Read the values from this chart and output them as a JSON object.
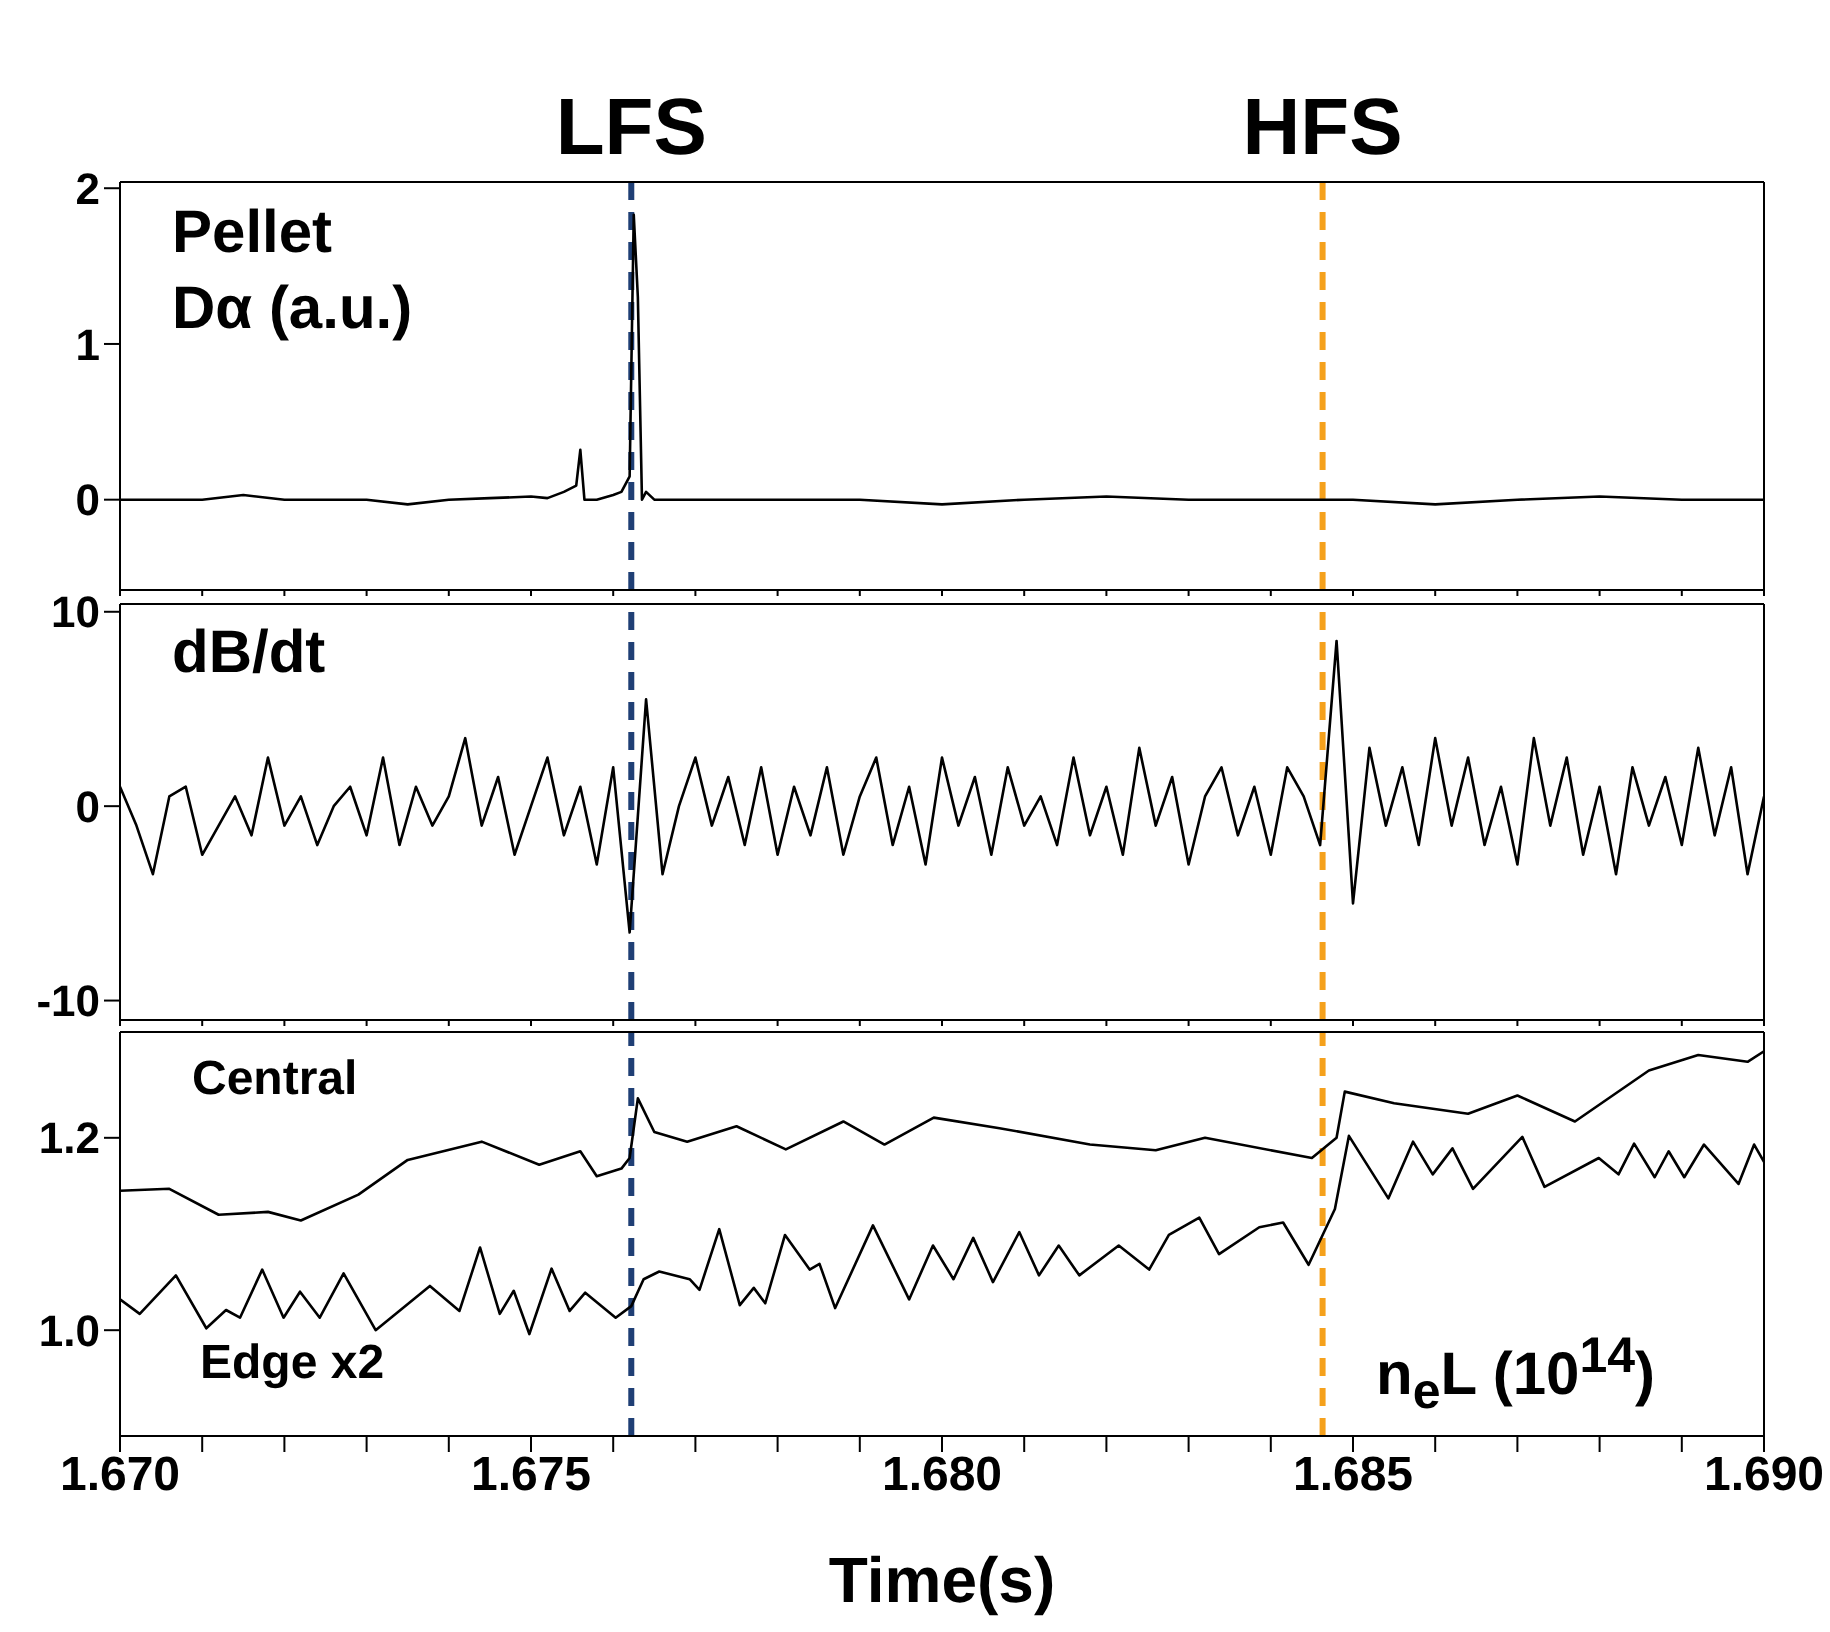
{
  "chart_data": [
    {
      "type": "line",
      "ylabel": "Pellet\nDα (a.u.)",
      "tick_labels": "y",
      "xlim": [
        1.67,
        1.69
      ],
      "xticks": [
        {
          "value": 1.67,
          "label": null
        },
        {
          "value": 1.671,
          "label": null
        },
        {
          "value": 1.672,
          "label": null
        },
        {
          "value": 1.673,
          "label": null
        },
        {
          "value": 1.674,
          "label": null
        },
        {
          "value": 1.675,
          "label": null
        },
        {
          "value": 1.676,
          "label": null
        },
        {
          "value": 1.677,
          "label": null
        },
        {
          "value": 1.678,
          "label": null
        },
        {
          "value": 1.679,
          "label": null
        },
        {
          "value": 1.68,
          "label": null
        },
        {
          "value": 1.681,
          "label": null
        },
        {
          "value": 1.682,
          "label": null
        },
        {
          "value": 1.683,
          "label": null
        },
        {
          "value": 1.684,
          "label": null
        },
        {
          "value": 1.685,
          "label": null
        },
        {
          "value": 1.686,
          "label": null
        },
        {
          "value": 1.687,
          "label": null
        },
        {
          "value": 1.688,
          "label": null
        },
        {
          "value": 1.689,
          "label": null
        },
        {
          "value": 1.69,
          "label": null
        }
      ],
      "ylim": [
        -0.58,
        2.04
      ],
      "yticks": [
        0,
        1,
        2
      ],
      "ref_lines": [
        {
          "axis": "x",
          "value": 1.67622,
          "label": "LFS",
          "color": "#1f3f75",
          "line_style": "dashed"
        },
        {
          "axis": "x",
          "value": 1.68463,
          "label": "HFS",
          "color": "#f5a11c",
          "line_style": "dashed"
        }
      ],
      "series": [
        {
          "color": "#000000",
          "x": [
            1.67,
            1.671,
            1.6715,
            1.672,
            1.673,
            1.6735,
            1.674,
            1.6745,
            1.675,
            1.6752,
            1.6754,
            1.67555,
            1.6756,
            1.67565,
            1.6758,
            1.676,
            1.6761,
            1.6762,
            1.67625,
            1.6763,
            1.67635,
            1.6764,
            1.6765,
            1.678,
            1.679,
            1.68,
            1.681,
            1.682,
            1.683,
            1.684,
            1.685,
            1.686,
            1.687,
            1.688,
            1.689,
            1.69
          ],
          "values": [
            0,
            0,
            0.03,
            0,
            0,
            -0.03,
            0,
            0.01,
            0.02,
            0.01,
            0.05,
            0.09,
            0.32,
            0,
            0,
            0.03,
            0.05,
            0.15,
            1.83,
            1.3,
            0,
            0.05,
            0,
            0,
            0,
            -0.03,
            0,
            0.02,
            0,
            0,
            0,
            -0.03,
            0,
            0.02,
            0,
            0
          ]
        }
      ]
    },
    {
      "type": "line",
      "ylabel": "dB/dt",
      "tick_labels": "y",
      "xlim": [
        1.67,
        1.69
      ],
      "xticks": [
        {
          "value": 1.67,
          "label": null
        },
        {
          "value": 1.671,
          "label": null
        },
        {
          "value": 1.672,
          "label": null
        },
        {
          "value": 1.673,
          "label": null
        },
        {
          "value": 1.674,
          "label": null
        },
        {
          "value": 1.675,
          "label": null
        },
        {
          "value": 1.676,
          "label": null
        },
        {
          "value": 1.677,
          "label": null
        },
        {
          "value": 1.678,
          "label": null
        },
        {
          "value": 1.679,
          "label": null
        },
        {
          "value": 1.68,
          "label": null
        },
        {
          "value": 1.681,
          "label": null
        },
        {
          "value": 1.682,
          "label": null
        },
        {
          "value": 1.683,
          "label": null
        },
        {
          "value": 1.684,
          "label": null
        },
        {
          "value": 1.685,
          "label": null
        },
        {
          "value": 1.686,
          "label": null
        },
        {
          "value": 1.687,
          "label": null
        },
        {
          "value": 1.688,
          "label": null
        },
        {
          "value": 1.689,
          "label": null
        },
        {
          "value": 1.69,
          "label": null
        }
      ],
      "ylim": [
        -11,
        10.4
      ],
      "yticks": [
        -10,
        0,
        10
      ],
      "ref_lines": [
        {
          "axis": "x",
          "value": 1.67622,
          "label": null,
          "color": "#1f3f75",
          "line_style": "dashed"
        },
        {
          "axis": "x",
          "value": 1.68463,
          "label": null,
          "color": "#f5a11c",
          "line_style": "dashed"
        }
      ],
      "series": [
        {
          "color": "#000000",
          "x": [
            1.67,
            1.6702,
            1.6704,
            1.6706,
            1.6708,
            1.671,
            1.6712,
            1.6714,
            1.6716,
            1.6718,
            1.672,
            1.6722,
            1.6724,
            1.6726,
            1.6728,
            1.673,
            1.6732,
            1.6734,
            1.6736,
            1.6738,
            1.674,
            1.6742,
            1.6744,
            1.6746,
            1.6748,
            1.675,
            1.6752,
            1.6754,
            1.6756,
            1.6758,
            1.676,
            1.6762,
            1.6764,
            1.6766,
            1.6768,
            1.677,
            1.6772,
            1.6774,
            1.6776,
            1.6778,
            1.678,
            1.6782,
            1.6784,
            1.6786,
            1.6788,
            1.679,
            1.6792,
            1.6794,
            1.6796,
            1.6798,
            1.68,
            1.6802,
            1.6804,
            1.6806,
            1.6808,
            1.681,
            1.6812,
            1.6814,
            1.6816,
            1.6818,
            1.682,
            1.6822,
            1.6824,
            1.6826,
            1.6828,
            1.683,
            1.6832,
            1.6834,
            1.6836,
            1.6838,
            1.684,
            1.6842,
            1.6844,
            1.6846,
            1.6848,
            1.685,
            1.6852,
            1.6854,
            1.6856,
            1.6858,
            1.686,
            1.6862,
            1.6864,
            1.6866,
            1.6868,
            1.687,
            1.6872,
            1.6874,
            1.6876,
            1.6878,
            1.688,
            1.6882,
            1.6884,
            1.6886,
            1.6888,
            1.689,
            1.6892,
            1.6894,
            1.6896,
            1.6898,
            1.69
          ],
          "values": [
            1,
            -1,
            -3.5,
            0.5,
            1,
            -2.5,
            -1,
            0.5,
            -1.5,
            2.5,
            -1,
            0.5,
            -2,
            0,
            1,
            -1.5,
            2.5,
            -2,
            1,
            -1,
            0.5,
            3.5,
            -1,
            1.5,
            -2.5,
            0,
            2.5,
            -1.5,
            1,
            -3,
            2,
            -6.5,
            5.5,
            -3.5,
            0,
            2.5,
            -1,
            1.5,
            -2,
            2,
            -2.5,
            1,
            -1.5,
            2,
            -2.5,
            0.5,
            2.5,
            -2,
            1,
            -3,
            2.5,
            -1,
            1.5,
            -2.5,
            2,
            -1,
            0.5,
            -2,
            2.5,
            -1.5,
            1,
            -2.5,
            3,
            -1,
            1.5,
            -3,
            0.5,
            2,
            -1.5,
            1,
            -2.5,
            2,
            0.5,
            -2,
            8.5,
            -5,
            3,
            -1,
            2,
            -2,
            3.5,
            -1,
            2.5,
            -2,
            1,
            -3,
            3.5,
            -1,
            2.5,
            -2.5,
            1,
            -3.5,
            2,
            -1,
            1.5,
            -2,
            3,
            -1.5,
            2,
            -3.5,
            0.5
          ]
        }
      ]
    },
    {
      "type": "line",
      "ylabel": "n$_{e}$L (10$^{14}$)",
      "xlabel": "Time(s)",
      "xlim": [
        1.67,
        1.69
      ],
      "xticks": [
        {
          "value": 1.67,
          "label": "1.670"
        },
        {
          "value": 1.671,
          "label": null
        },
        {
          "value": 1.672,
          "label": null
        },
        {
          "value": 1.673,
          "label": null
        },
        {
          "value": 1.674,
          "label": null
        },
        {
          "value": 1.675,
          "label": "1.675"
        },
        {
          "value": 1.676,
          "label": null
        },
        {
          "value": 1.677,
          "label": null
        },
        {
          "value": 1.678,
          "label": null
        },
        {
          "value": 1.679,
          "label": null
        },
        {
          "value": 1.68,
          "label": "1.680"
        },
        {
          "value": 1.681,
          "label": null
        },
        {
          "value": 1.682,
          "label": null
        },
        {
          "value": 1.683,
          "label": null
        },
        {
          "value": 1.684,
          "label": null
        },
        {
          "value": 1.685,
          "label": "1.685"
        },
        {
          "value": 1.686,
          "label": null
        },
        {
          "value": 1.687,
          "label": null
        },
        {
          "value": 1.688,
          "label": null
        },
        {
          "value": 1.689,
          "label": null
        },
        {
          "value": 1.69,
          "label": "1.690"
        }
      ],
      "ylim": [
        0.89,
        1.31
      ],
      "yticks": [
        {
          "value": 1,
          "label": "1.0"
        },
        {
          "value": 1.2,
          "label": "1.2"
        }
      ],
      "ref_lines": [
        {
          "axis": "x",
          "value": 1.67622,
          "label": null,
          "color": "#1f3f75",
          "line_style": "dashed"
        },
        {
          "axis": "x",
          "value": 1.68463,
          "label": null,
          "color": "#f5a11c",
          "line_style": "dashed"
        }
      ],
      "series": [
        {
          "name": "Central",
          "color": "#000000",
          "x": [
            1.67,
            1.6706,
            1.6712,
            1.6718,
            1.6722,
            1.6729,
            1.6735,
            1.6744,
            1.6751,
            1.6756,
            1.6758,
            1.6761,
            1.6762,
            1.6763,
            1.6765,
            1.6769,
            1.6775,
            1.6781,
            1.6788,
            1.6793,
            1.6799,
            1.6807,
            1.6818,
            1.6826,
            1.6832,
            1.6845,
            1.6848,
            1.6849,
            1.6855,
            1.6864,
            1.687,
            1.6877,
            1.6886,
            1.6892,
            1.6898,
            1.69
          ],
          "values": [
            1.145,
            1.147,
            1.12,
            1.123,
            1.114,
            1.141,
            1.177,
            1.196,
            1.172,
            1.186,
            1.16,
            1.168,
            1.179,
            1.241,
            1.206,
            1.196,
            1.212,
            1.188,
            1.217,
            1.193,
            1.221,
            1.21,
            1.193,
            1.187,
            1.2,
            1.179,
            1.2,
            1.248,
            1.236,
            1.225,
            1.244,
            1.217,
            1.27,
            1.286,
            1.279,
            1.29
          ]
        },
        {
          "name": "Edge x2",
          "color": "#000000",
          "x": [
            1.67,
            1.67024,
            1.67068,
            1.67105,
            1.67129,
            1.67146,
            1.67173,
            1.67199,
            1.67219,
            1.67243,
            1.67272,
            1.67311,
            1.67377,
            1.67413,
            1.67438,
            1.67462,
            1.67479,
            1.67498,
            1.67525,
            1.67547,
            1.67566,
            1.67603,
            1.67622,
            1.67637,
            1.67656,
            1.67693,
            1.67705,
            1.67729,
            1.67754,
            1.67771,
            1.67785,
            1.67809,
            1.67839,
            1.67851,
            1.6787,
            1.67916,
            1.6796,
            1.67989,
            1.68014,
            1.68038,
            1.68062,
            1.68094,
            1.68118,
            1.68142,
            1.68167,
            1.68215,
            1.68252,
            1.68276,
            1.68313,
            1.68337,
            1.68386,
            1.68415,
            1.68446,
            1.68478,
            1.68495,
            1.68543,
            1.68573,
            1.68597,
            1.68621,
            1.68646,
            1.68706,
            1.68733,
            1.68799,
            1.68823,
            1.68842,
            1.68867,
            1.68884,
            1.68903,
            1.68927,
            1.68969,
            1.68988,
            1.69
          ],
          "values": [
            1.032,
            1.017,
            1.057,
            1.002,
            1.021,
            1.013,
            1.063,
            1.013,
            1.04,
            1.013,
            1.059,
            1.0,
            1.046,
            1.02,
            1.086,
            1.017,
            1.041,
            0.996,
            1.064,
            1.02,
            1.039,
            1.013,
            1.025,
            1.053,
            1.061,
            1.053,
            1.042,
            1.105,
            1.026,
            1.044,
            1.028,
            1.099,
            1.063,
            1.069,
            1.023,
            1.109,
            1.032,
            1.088,
            1.053,
            1.096,
            1.05,
            1.102,
            1.057,
            1.088,
            1.057,
            1.088,
            1.063,
            1.099,
            1.117,
            1.079,
            1.107,
            1.112,
            1.068,
            1.126,
            1.202,
            1.137,
            1.196,
            1.162,
            1.189,
            1.147,
            1.201,
            1.149,
            1.179,
            1.162,
            1.194,
            1.159,
            1.186,
            1.159,
            1.193,
            1.152,
            1.193,
            1.175
          ]
        }
      ]
    }
  ]
}
